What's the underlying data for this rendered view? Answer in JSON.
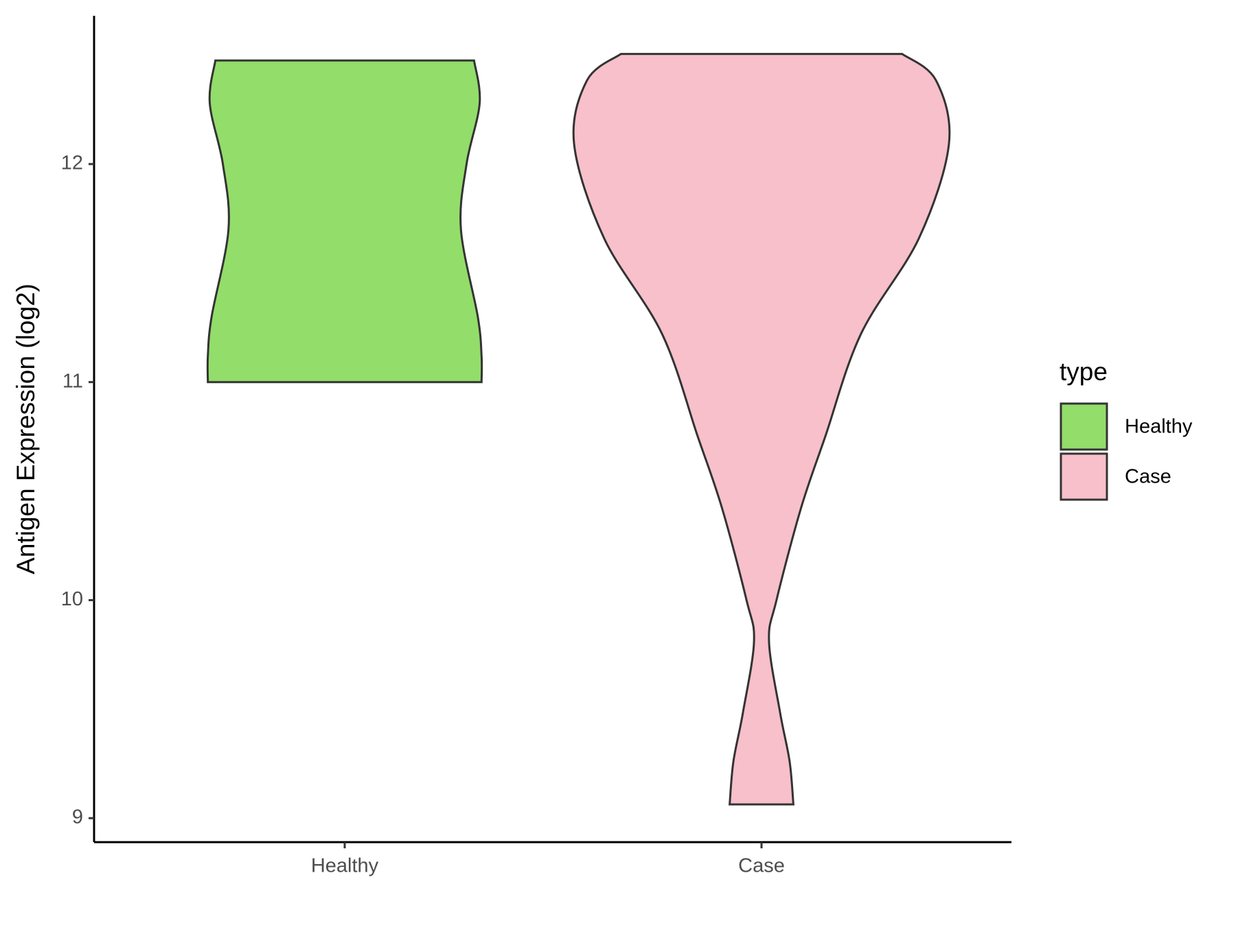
{
  "chart_data": {
    "type": "violin",
    "y_label": "Antigen Expression (log2)",
    "categories": [
      "Healthy",
      "Case"
    ],
    "legend_title": "type",
    "series": [
      {
        "name": "Healthy",
        "color": "#93dd6b",
        "y": [
          12.475,
          12.28,
          12.0,
          11.7,
          11.3,
          11.12,
          11.0
        ],
        "density": [
          0.69,
          0.72,
          0.65,
          0.62,
          0.71,
          0.73,
          0.73
        ]
      },
      {
        "name": "Case",
        "color": "#f7c0cb",
        "y": [
          12.505,
          12.385,
          12.094,
          11.66,
          11.22,
          10.75,
          10.42,
          10.0,
          9.81,
          9.48,
          9.26,
          9.063
        ],
        "density": [
          0.75,
          0.93,
          1.0,
          0.84,
          0.53,
          0.34,
          0.21,
          0.08,
          0.04,
          0.1,
          0.15,
          0.17
        ]
      }
    ],
    "ylim": [
      8.89,
      12.68
    ],
    "yticks": [
      9,
      10,
      11,
      12
    ]
  }
}
